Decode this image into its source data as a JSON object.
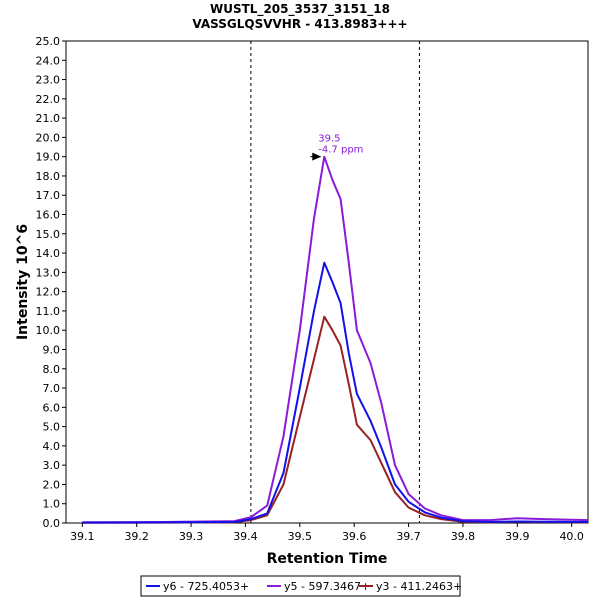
{
  "chart_data": {
    "type": "line",
    "title": "WUSTL_205_3537_3151_18",
    "subtitle": "VASSGLQSVVHR - 413.8983+++",
    "xlabel": "Retention Time",
    "ylabel": "Intensity 10^6",
    "xlim": [
      39.07,
      40.03
    ],
    "ylim": [
      0,
      25
    ],
    "x_ticks": [
      "39.1",
      "39.2",
      "39.3",
      "39.4",
      "39.5",
      "39.6",
      "39.7",
      "39.8",
      "39.9",
      "40.0"
    ],
    "y_ticks": [
      "0.0",
      "1.0",
      "2.0",
      "3.0",
      "4.0",
      "5.0",
      "6.0",
      "7.0",
      "8.0",
      "9.0",
      "10.0",
      "11.0",
      "12.0",
      "13.0",
      "14.0",
      "15.0",
      "16.0",
      "17.0",
      "18.0",
      "19.0",
      "20.0",
      "21.0",
      "22.0",
      "23.0",
      "24.0",
      "25.0"
    ],
    "grid": false,
    "legend_position": "bottom",
    "boundaries": [
      39.41,
      39.72
    ],
    "annotation": {
      "x": 39.545,
      "y": 19.0,
      "lines": [
        "39.5",
        "-4.7 ppm"
      ],
      "color": "#8B1AD9"
    },
    "series": [
      {
        "name": "y6 - 725.4053+",
        "color": "#1111E8",
        "x": [
          39.1,
          39.25,
          39.38,
          39.41,
          39.44,
          39.47,
          39.5,
          39.526,
          39.545,
          39.56,
          39.575,
          39.59,
          39.605,
          39.63,
          39.65,
          39.675,
          39.7,
          39.73,
          39.76,
          39.8,
          39.85,
          39.9,
          39.95,
          40.03
        ],
        "y": [
          0.02,
          0.03,
          0.05,
          0.2,
          0.5,
          2.6,
          7.0,
          11.0,
          13.5,
          12.5,
          11.4,
          8.8,
          6.7,
          5.3,
          3.9,
          2.0,
          1.1,
          0.55,
          0.28,
          0.1,
          0.05,
          0.08,
          0.06,
          0.05
        ]
      },
      {
        "name": "y5 - 597.3467+",
        "color": "#8B1AD9",
        "x": [
          39.1,
          39.25,
          39.38,
          39.41,
          39.44,
          39.47,
          39.5,
          39.526,
          39.545,
          39.56,
          39.575,
          39.59,
          39.605,
          39.63,
          39.65,
          39.675,
          39.7,
          39.73,
          39.76,
          39.8,
          39.85,
          39.9,
          39.95,
          40.03
        ],
        "y": [
          0.04,
          0.05,
          0.1,
          0.3,
          0.9,
          4.5,
          10.0,
          15.8,
          19.0,
          17.8,
          16.8,
          13.5,
          10.0,
          8.3,
          6.2,
          3.0,
          1.5,
          0.75,
          0.4,
          0.15,
          0.15,
          0.25,
          0.2,
          0.15
        ]
      },
      {
        "name": "y3 - 411.2463+",
        "color": "#992222",
        "x": [
          39.1,
          39.25,
          39.38,
          39.41,
          39.44,
          39.47,
          39.5,
          39.526,
          39.545,
          39.56,
          39.575,
          39.59,
          39.605,
          39.63,
          39.65,
          39.675,
          39.7,
          39.73,
          39.76,
          39.8,
          39.85,
          39.9,
          39.95,
          40.03
        ],
        "y": [
          0.01,
          0.02,
          0.04,
          0.15,
          0.4,
          2.0,
          5.5,
          8.5,
          10.7,
          10.0,
          9.2,
          7.2,
          5.1,
          4.3,
          3.1,
          1.6,
          0.8,
          0.4,
          0.2,
          0.07,
          0.04,
          0.06,
          0.05,
          0.04
        ]
      }
    ]
  }
}
